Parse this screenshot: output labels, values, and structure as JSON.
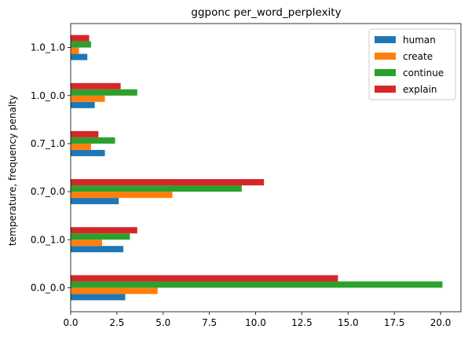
{
  "chart_data": {
    "type": "bar",
    "orientation": "horizontal",
    "title": "ggponc per_word_perplexity",
    "xlabel": "",
    "ylabel": "temperature, frequency penalty",
    "xlim": [
      0,
      21.1
    ],
    "xticks": [
      "0.0",
      "2.5",
      "5.0",
      "7.5",
      "10.0",
      "12.5",
      "15.0",
      "17.5",
      "20.0"
    ],
    "categories": [
      "0.0_0.0",
      "0.0_1.0",
      "0.7_0.0",
      "0.7_1.0",
      "1.0_0.0",
      "1.0_1.0"
    ],
    "series": [
      {
        "name": "human",
        "color": "#1f77b4",
        "values": [
          2.95,
          2.85,
          2.6,
          1.85,
          1.3,
          0.9
        ]
      },
      {
        "name": "create",
        "color": "#ff7f0e",
        "values": [
          4.7,
          1.7,
          5.5,
          1.1,
          1.85,
          0.45
        ]
      },
      {
        "name": "continue",
        "color": "#2ca02c",
        "values": [
          20.1,
          3.2,
          9.25,
          2.4,
          3.6,
          1.1
        ]
      },
      {
        "name": "explain",
        "color": "#d62728",
        "values": [
          14.45,
          3.6,
          10.45,
          1.5,
          2.7,
          1.0
        ]
      }
    ],
    "legend_position": "top-right",
    "grid": false
  }
}
